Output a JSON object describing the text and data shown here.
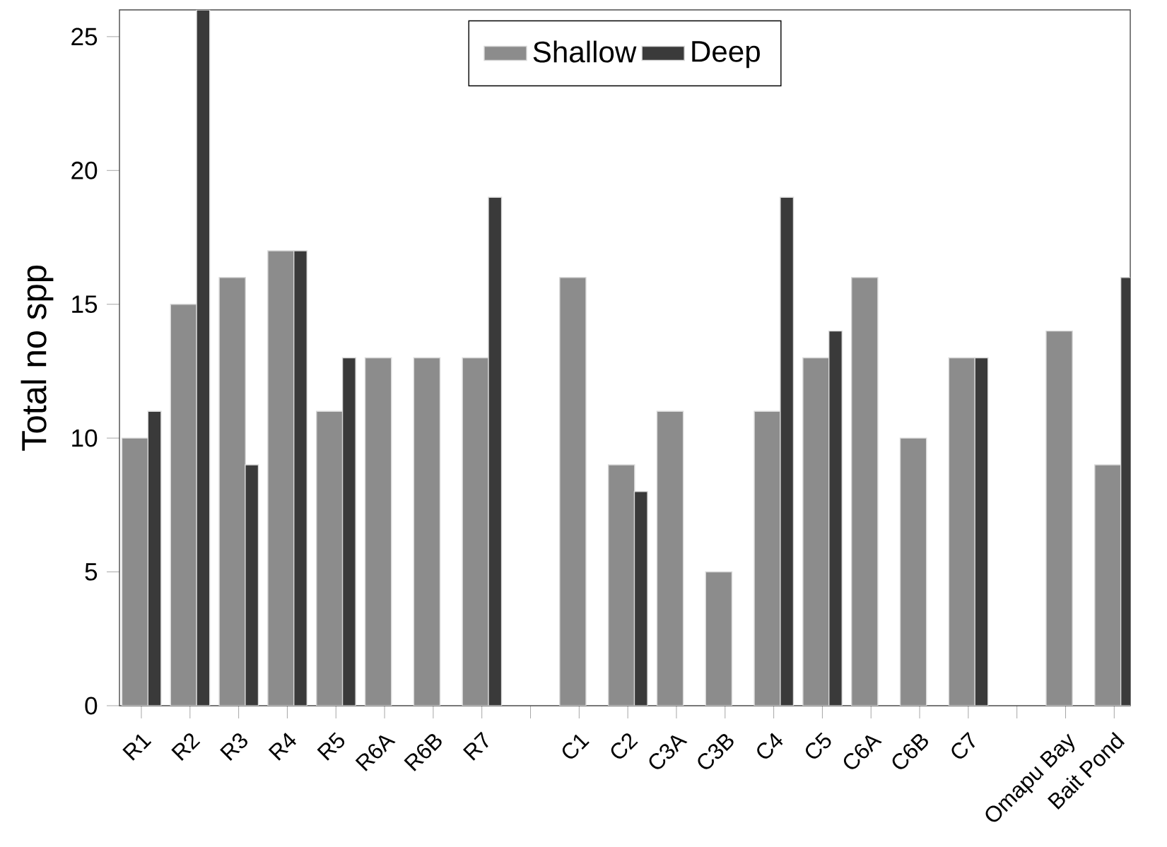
{
  "chart_data": {
    "type": "bar",
    "ylabel": "Total no spp",
    "categories": [
      "R1",
      "R2",
      "R3",
      "R4",
      "R5",
      "R6A",
      "R6B",
      "R7",
      null,
      "C1",
      "C2",
      "C3A",
      "C3B",
      "C4",
      "C5",
      "C6A",
      "C6B",
      "C7",
      null,
      "Omapu Bay",
      "Bait Pond"
    ],
    "series": [
      {
        "name": "Shallow",
        "color": "#8c8c8c",
        "values": [
          10,
          15,
          16,
          17,
          11,
          13,
          13,
          13,
          null,
          16,
          9,
          11,
          5,
          11,
          13,
          16,
          10,
          13,
          null,
          14,
          9
        ]
      },
      {
        "name": "Deep",
        "color": "#3a3a3a",
        "values": [
          11,
          26,
          9,
          17,
          13,
          null,
          null,
          19,
          null,
          null,
          8,
          null,
          null,
          19,
          14,
          null,
          null,
          13,
          null,
          null,
          16
        ]
      }
    ],
    "ylim": [
      0,
      26
    ],
    "yticks": [
      0,
      5,
      10,
      15,
      20,
      25
    ],
    "legend": "top",
    "grid": false
  }
}
